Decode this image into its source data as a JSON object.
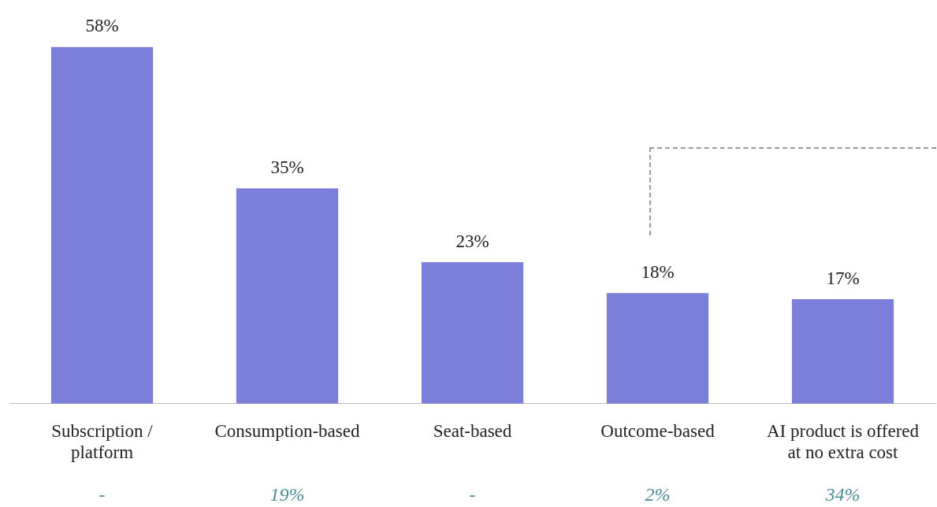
{
  "chart_data": {
    "type": "bar",
    "categories": [
      "Subscription / platform",
      "Consumption-based",
      "Seat-based",
      "Outcome-based",
      "AI product is offered at no extra cost"
    ],
    "values": [
      58,
      35,
      23,
      18,
      17
    ],
    "color": "#7b7fd9",
    "value_labels": [
      "58%",
      "35%",
      "23%",
      "18%",
      "17%"
    ],
    "grid": false,
    "legend": false,
    "annotations": [
      "-",
      "19%",
      "-",
      "2%",
      "34%"
    ]
  }
}
